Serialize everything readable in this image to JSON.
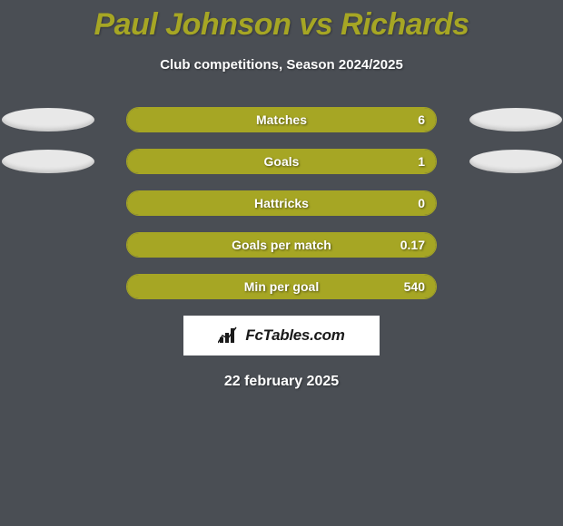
{
  "title": "Paul Johnson vs Richards",
  "subtitle": "Club competitions, Season 2024/2025",
  "date": "22 february 2025",
  "logo_text": "FcTables.com",
  "colors": {
    "background": "#4a4e54",
    "bar_fill": "#a6a624",
    "bar_border": "#a6a624",
    "ellipse": "#e8e8e8",
    "title": "#a6a624",
    "text": "#ffffff",
    "logo_bg": "#ffffff",
    "logo_text": "#1a1a1a"
  },
  "stats": [
    {
      "label": "Matches",
      "value": "6",
      "fill_pct": 100,
      "show_left_ellipse": true,
      "show_right_ellipse": true
    },
    {
      "label": "Goals",
      "value": "1",
      "fill_pct": 100,
      "show_left_ellipse": true,
      "show_right_ellipse": true
    },
    {
      "label": "Hattricks",
      "value": "0",
      "fill_pct": 100,
      "show_left_ellipse": false,
      "show_right_ellipse": false
    },
    {
      "label": "Goals per match",
      "value": "0.17",
      "fill_pct": 100,
      "show_left_ellipse": false,
      "show_right_ellipse": false
    },
    {
      "label": "Min per goal",
      "value": "540",
      "fill_pct": 100,
      "show_left_ellipse": false,
      "show_right_ellipse": false
    }
  ]
}
